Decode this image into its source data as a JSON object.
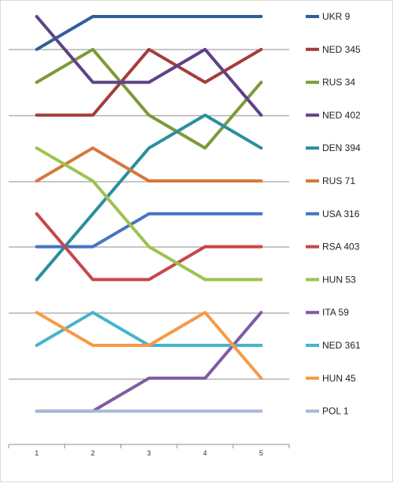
{
  "chart_data": {
    "type": "line",
    "title": "",
    "xlabel": "",
    "ylabel": "",
    "x": [
      1,
      2,
      3,
      4,
      5
    ],
    "ylim": [
      1,
      13
    ],
    "y_inverted": true,
    "y_axis_labels": "none",
    "grid": "horizontal",
    "legend_position": "right",
    "series": [
      {
        "name": "UKR 9",
        "color": "#2f5f9a",
        "values": [
          2,
          1,
          1,
          1,
          1
        ]
      },
      {
        "name": "NED 345",
        "color": "#a43d3a",
        "values": [
          4,
          4,
          2,
          3,
          2
        ]
      },
      {
        "name": "RUS 34",
        "color": "#7d9a3b",
        "values": [
          3,
          2,
          4,
          5,
          3
        ]
      },
      {
        "name": "NED 402",
        "color": "#5f4187",
        "values": [
          1,
          3,
          3,
          2,
          4
        ]
      },
      {
        "name": "DEN 394",
        "color": "#2a8f9f",
        "values": [
          9,
          7,
          5,
          4,
          5
        ]
      },
      {
        "name": "RUS 71",
        "color": "#d6783b",
        "values": [
          6,
          5,
          6,
          6,
          6
        ]
      },
      {
        "name": "USA 316",
        "color": "#4474c4",
        "values": [
          8,
          8,
          7,
          7,
          7
        ]
      },
      {
        "name": "RSA 403",
        "color": "#c8464a",
        "values": [
          7,
          9,
          9,
          8,
          8
        ]
      },
      {
        "name": "HUN 53",
        "color": "#9dc34f",
        "values": [
          5,
          6,
          8,
          9,
          9
        ]
      },
      {
        "name": "ITA 59",
        "color": "#7e5ba6",
        "values": [
          13,
          13,
          12,
          12,
          10
        ]
      },
      {
        "name": "NED 361",
        "color": "#46b4cd",
        "values": [
          11,
          10,
          11,
          11,
          11
        ]
      },
      {
        "name": "HUN 45",
        "color": "#f79a46",
        "values": [
          10,
          11,
          11,
          10,
          12
        ]
      },
      {
        "name": "POL 1",
        "color": "#a6b9d6",
        "values": [
          13,
          13,
          13,
          13,
          13
        ]
      }
    ]
  }
}
